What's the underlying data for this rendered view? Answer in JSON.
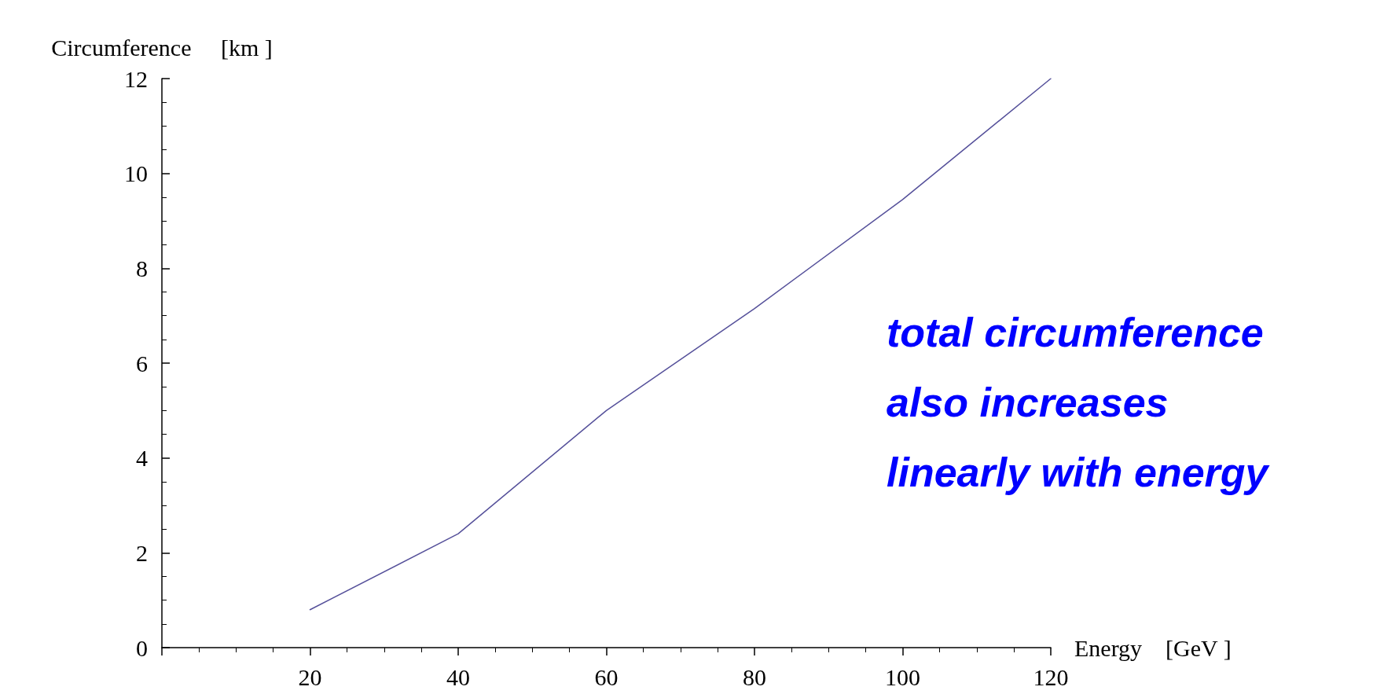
{
  "chart_data": {
    "type": "line",
    "xlabel": "Energy    [GeV ]",
    "ylabel": "Circumference     [km ]",
    "x": [
      20,
      40,
      60,
      80,
      100,
      120
    ],
    "series": [
      {
        "color": "#55509a",
        "values": [
          0.8,
          2.4,
          5.0,
          7.15,
          9.45,
          12.0
        ]
      }
    ],
    "xlim": [
      0,
      120
    ],
    "xticks": [
      {
        "value": 0,
        "label": null
      },
      20,
      40,
      60,
      80,
      100,
      120
    ],
    "ylim": [
      0,
      12
    ],
    "yticks": [
      0,
      2,
      4,
      6,
      8,
      10,
      12
    ],
    "grid": false,
    "marker": "none",
    "line_style": "solid",
    "annotations": [
      "total circumference also increases linearly with energy"
    ]
  }
}
